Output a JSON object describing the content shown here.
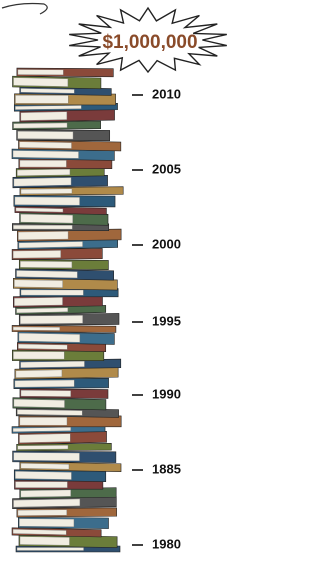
{
  "burst": {
    "label": "$1,000,000"
  },
  "year_labels": [
    "2010",
    "2005",
    "2000",
    "1995",
    "1990",
    "1885",
    "1980"
  ]
}
